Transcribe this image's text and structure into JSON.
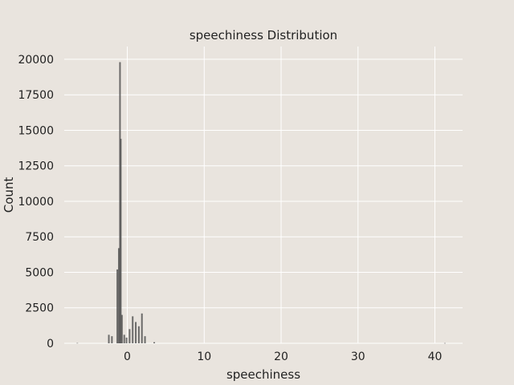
{
  "chart_data": {
    "type": "bar",
    "title": "speechiness Distribution",
    "xlabel": "speechiness",
    "ylabel": "Count",
    "xlim": [
      -8.2,
      43.6
    ],
    "ylim": [
      0,
      20900
    ],
    "xticks": [
      0,
      10,
      20,
      30,
      40
    ],
    "xtick_labels": [
      "0",
      "10",
      "20",
      "30",
      "40"
    ],
    "yticks": [
      0,
      2500,
      5000,
      7500,
      10000,
      12500,
      15000,
      17500,
      20000
    ],
    "ytick_labels": [
      "0",
      "2500",
      "5000",
      "7500",
      "10000",
      "12500",
      "15000",
      "17500",
      "20000"
    ],
    "grid": true,
    "series": [
      {
        "values": [
          {
            "x": -6.5,
            "y": 20
          },
          {
            "x": -2.4,
            "y": 600
          },
          {
            "x": -2.0,
            "y": 500
          },
          {
            "x": -1.3,
            "y": 5200
          },
          {
            "x": -1.1,
            "y": 6700
          },
          {
            "x": -0.95,
            "y": 19800
          },
          {
            "x": -0.85,
            "y": 14400
          },
          {
            "x": -0.7,
            "y": 2000
          },
          {
            "x": -0.4,
            "y": 600
          },
          {
            "x": -0.1,
            "y": 400
          },
          {
            "x": 0.3,
            "y": 1000
          },
          {
            "x": 0.7,
            "y": 1900
          },
          {
            "x": 1.1,
            "y": 1500
          },
          {
            "x": 1.5,
            "y": 1200
          },
          {
            "x": 1.9,
            "y": 2100
          },
          {
            "x": 2.3,
            "y": 500
          },
          {
            "x": 3.5,
            "y": 80
          },
          {
            "x": 41.3,
            "y": 15
          }
        ]
      }
    ],
    "colors": {
      "background": "#e9e4de",
      "grid": "#ffffff",
      "bars": "#555555"
    }
  }
}
